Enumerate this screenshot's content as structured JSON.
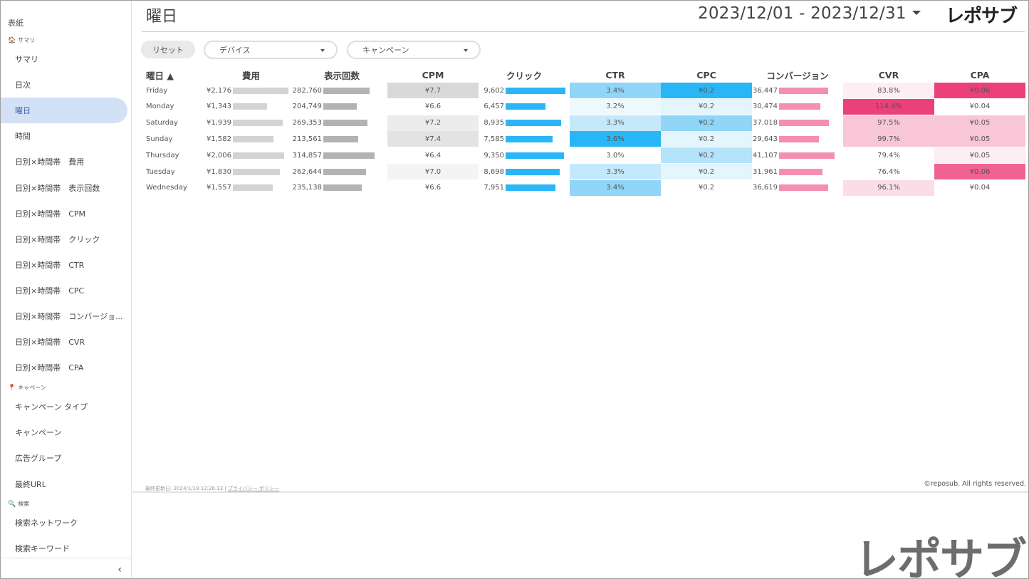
{
  "sidebar": {
    "top_label": "表紙",
    "sections": [
      {
        "icon": "house-icon",
        "glyph": "🏠",
        "label": "サマリ"
      },
      {
        "icon": "pin-icon",
        "glyph": "📍",
        "label": "キャペーン"
      },
      {
        "icon": "search-icon",
        "glyph": "🔍",
        "label": "検索"
      }
    ],
    "items": [
      {
        "label": "サマリ"
      },
      {
        "label": "日次"
      },
      {
        "label": "曜日"
      },
      {
        "label": "時間"
      },
      {
        "label": "日別×時間帯　費用"
      },
      {
        "label": "日別×時間帯　表示回数"
      },
      {
        "label": "日別×時間帯　CPM"
      },
      {
        "label": "日別×時間帯　クリック"
      },
      {
        "label": "日別×時間帯　CTR"
      },
      {
        "label": "日別×時間帯　CPC"
      },
      {
        "label": "日別×時間帯　コンバージョ..."
      },
      {
        "label": "日別×時間帯　CVR"
      },
      {
        "label": "日別×時間帯　CPA"
      },
      {
        "label": "キャンペーン タイプ"
      },
      {
        "label": "キャンペーン"
      },
      {
        "label": "広告グループ"
      },
      {
        "label": "最終URL"
      },
      {
        "label": "検索ネットワーク"
      },
      {
        "label": "検索キーワード"
      }
    ],
    "active_item": "曜日",
    "collapse_glyph": "‹"
  },
  "header": {
    "title": "曜日",
    "date_range": "2023/12/01 - 2023/12/31",
    "logo": "レポサブ"
  },
  "filters": {
    "reset_label": "リセット",
    "device_label": "デバイス",
    "campaign_label": "キャンペーン"
  },
  "table": {
    "columns": [
      "曜日 ▲",
      "費用",
      "表示回数",
      "CPM",
      "クリック",
      "CTR",
      "CPC",
      "コンバージョン",
      "CVR",
      "CPA"
    ],
    "rows": [
      {
        "day": "Friday",
        "cost": "¥2,176",
        "cost_v": 2176,
        "imp": "282,760",
        "imp_v": 282760,
        "cpm": "¥7.7",
        "click": "9,602",
        "click_v": 9602,
        "ctr": "3.4%",
        "cpc": "¥0.2",
        "conv": "36,447",
        "conv_v": 36447,
        "cvr": "83.8%",
        "cpa": "¥0.06"
      },
      {
        "day": "Monday",
        "cost": "¥1,343",
        "cost_v": 1343,
        "imp": "204,749",
        "imp_v": 204749,
        "cpm": "¥6.6",
        "click": "6,457",
        "click_v": 6457,
        "ctr": "3.2%",
        "cpc": "¥0.2",
        "conv": "30,474",
        "conv_v": 30474,
        "cvr": "114.4%",
        "cpa": "¥0.04"
      },
      {
        "day": "Saturday",
        "cost": "¥1,939",
        "cost_v": 1939,
        "imp": "269,353",
        "imp_v": 269353,
        "cpm": "¥7.2",
        "click": "8,935",
        "click_v": 8935,
        "ctr": "3.3%",
        "cpc": "¥0.2",
        "conv": "37,018",
        "conv_v": 37018,
        "cvr": "97.5%",
        "cpa": "¥0.05"
      },
      {
        "day": "Sunday",
        "cost": "¥1,582",
        "cost_v": 1582,
        "imp": "213,561",
        "imp_v": 213561,
        "cpm": "¥7.4",
        "click": "7,585",
        "click_v": 7585,
        "ctr": "3.6%",
        "cpc": "¥0.2",
        "conv": "29,643",
        "conv_v": 29643,
        "cvr": "99.7%",
        "cpa": "¥0.05"
      },
      {
        "day": "Thursday",
        "cost": "¥2,006",
        "cost_v": 2006,
        "imp": "314,857",
        "imp_v": 314857,
        "cpm": "¥6.4",
        "click": "9,350",
        "click_v": 9350,
        "ctr": "3.0%",
        "cpc": "¥0.2",
        "conv": "41,107",
        "conv_v": 41107,
        "cvr": "79.4%",
        "cpa": "¥0.05"
      },
      {
        "day": "Tuesday",
        "cost": "¥1,830",
        "cost_v": 1830,
        "imp": "262,644",
        "imp_v": 262644,
        "cpm": "¥7.0",
        "click": "8,698",
        "click_v": 8698,
        "ctr": "3.3%",
        "cpc": "¥0.2",
        "conv": "31,961",
        "conv_v": 31961,
        "cvr": "76.4%",
        "cpa": "¥0.06"
      },
      {
        "day": "Wednesday",
        "cost": "¥1,557",
        "cost_v": 1557,
        "imp": "235,138",
        "imp_v": 235138,
        "cpm": "¥6.6",
        "click": "7,951",
        "click_v": 7951,
        "ctr": "3.4%",
        "cpc": "¥0.2",
        "conv": "36,619",
        "conv_v": 36619,
        "cvr": "96.1%",
        "cpa": "¥0.04"
      }
    ],
    "bar_colors": {
      "cost": "#d3d3d3",
      "imp": "#b3b3b3",
      "click": "#29b6f6",
      "conv": "#f48fb1"
    },
    "heat": {
      "cpm": [
        "#d9d9d9",
        "#ffffff",
        "#ececec",
        "#e3e3e3",
        "#ffffff",
        "#f4f4f4",
        "#ffffff"
      ],
      "ctr": [
        "#8fd6f9",
        "#eef9fe",
        "#c4e9fc",
        "#29b6f6",
        "#ffffff",
        "#c4e9fc",
        "#8fd6f9"
      ],
      "cpc": [
        "#29b6f6",
        "#e3f5fd",
        "#8fd6f9",
        "#e3f5fd",
        "#b3e4fb",
        "#e3f5fd",
        "#ffffff"
      ],
      "cvr": [
        "#fdeef3",
        "#ec407a",
        "#f8c6d7",
        "#f8c6d7",
        "#ffffff",
        "#ffffff",
        "#fbdde8"
      ],
      "cpa": [
        "#ec407a",
        "#ffffff",
        "#f8c6d7",
        "#f8c6d7",
        "#fdeef3",
        "#f06292",
        "#ffffff"
      ]
    }
  },
  "footer": {
    "updated": "最終更新日: 2024/1/19 12:26:13",
    "privacy": "プライバシー ポリシー",
    "copyright": "©reposub. All rights reserved."
  },
  "bottom_logo": "レポサブ"
}
